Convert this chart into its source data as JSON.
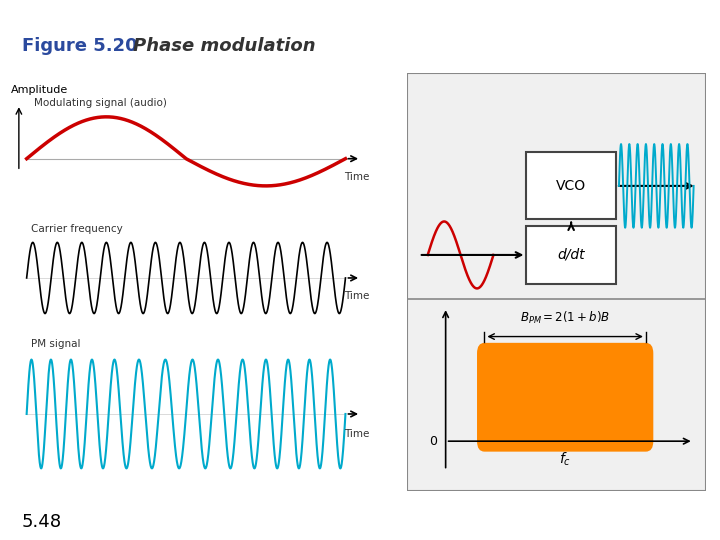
{
  "title_bold": "Figure 5.20",
  "title_italic": "Phase modulation",
  "title_color": "#2b4a9e",
  "footer_text": "5.48",
  "bg_color": "#ffffff",
  "red_line_color": "#cc0000",
  "carrier_color": "#000000",
  "pm_color": "#00aacc",
  "orange_fill": "#ff8800",
  "border_gray": "#999999"
}
